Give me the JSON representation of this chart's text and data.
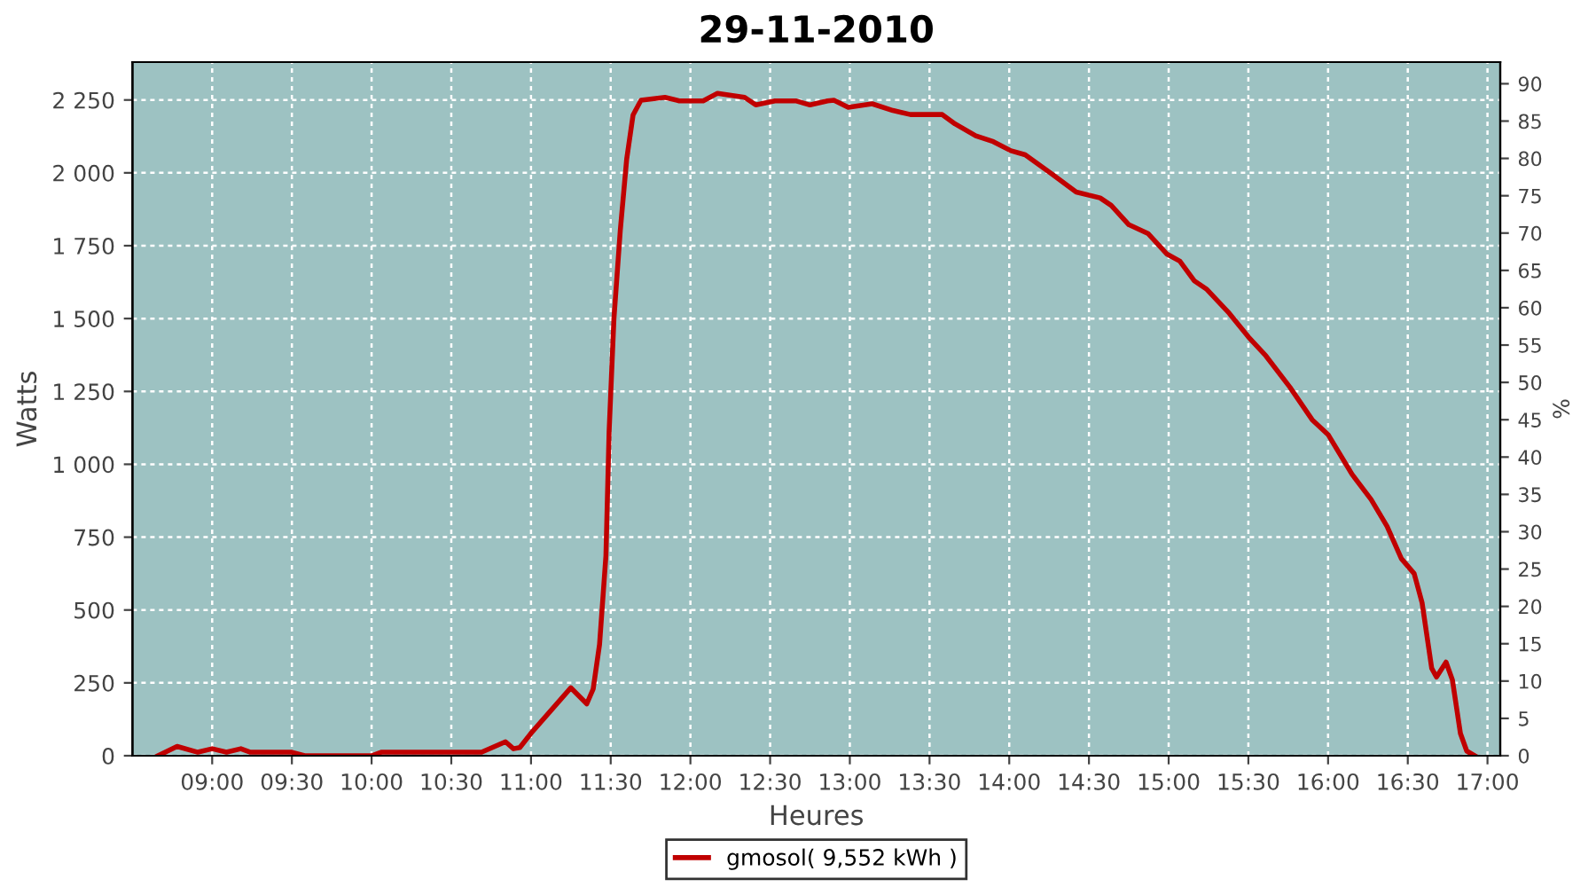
{
  "chart_data": {
    "type": "line",
    "title": "29-11-2010",
    "xlabel": "Heures",
    "ylabel": "Watts",
    "y2label": "%",
    "xlim": [
      8.5,
      17.08
    ],
    "ylim": [
      0,
      2380
    ],
    "y2lim": [
      0,
      92.9
    ],
    "xticks": [
      {
        "value": 9,
        "label": "09:00"
      },
      {
        "value": 9.5,
        "label": "09:30"
      },
      {
        "value": 10,
        "label": "10:00"
      },
      {
        "value": 10.5,
        "label": "10:30"
      },
      {
        "value": 11,
        "label": "11:00"
      },
      {
        "value": 11.5,
        "label": "11:30"
      },
      {
        "value": 12,
        "label": "12:00"
      },
      {
        "value": 12.5,
        "label": "12:30"
      },
      {
        "value": 13,
        "label": "13:00"
      },
      {
        "value": 13.5,
        "label": "13:30"
      },
      {
        "value": 14,
        "label": "14:00"
      },
      {
        "value": 14.5,
        "label": "14:30"
      },
      {
        "value": 15,
        "label": "15:00"
      },
      {
        "value": 15.5,
        "label": "15:30"
      },
      {
        "value": 16,
        "label": "16:00"
      },
      {
        "value": 16.5,
        "label": "16:30"
      },
      {
        "value": 17,
        "label": "17:00"
      }
    ],
    "yticks": [
      0,
      250,
      500,
      750,
      {
        "value": 1000,
        "label": "1 000"
      },
      {
        "value": 1250,
        "label": "1 250"
      },
      {
        "value": 1500,
        "label": "1 500"
      },
      {
        "value": 1750,
        "label": "1 750"
      },
      {
        "value": 2000,
        "label": "2 000"
      },
      {
        "value": 2250,
        "label": "2 250"
      }
    ],
    "y2ticks": [
      0,
      5,
      10,
      15,
      20,
      25,
      30,
      35,
      40,
      45,
      50,
      55,
      60,
      65,
      70,
      75,
      80,
      85,
      90
    ],
    "grid": true,
    "legend": "bottom",
    "marker": "none",
    "line_style": "solid",
    "series": [
      {
        "name": "gmosol( 9,552 kWh )",
        "color": "#c00000",
        "x": [
          8.66,
          8.78,
          8.91,
          9.0,
          9.09,
          9.18,
          9.24,
          9.5,
          9.58,
          10.0,
          10.06,
          10.69,
          10.84,
          10.89,
          10.93,
          11.0,
          11.25,
          11.35,
          11.39,
          11.43,
          11.47,
          11.49,
          11.52,
          11.56,
          11.6,
          11.64,
          11.69,
          11.84,
          11.93,
          12.08,
          12.17,
          12.34,
          12.41,
          12.53,
          12.66,
          12.75,
          12.86,
          12.9,
          12.99,
          13.14,
          13.27,
          13.38,
          13.58,
          13.66,
          13.79,
          13.9,
          14.01,
          14.1,
          14.27,
          14.42,
          14.57,
          14.64,
          14.75,
          14.87,
          14.99,
          15.07,
          15.16,
          15.24,
          15.38,
          15.5,
          15.61,
          15.76,
          15.9,
          16.0,
          16.15,
          16.27,
          16.37,
          16.46,
          16.54,
          16.59,
          16.65,
          16.68,
          16.74,
          16.78,
          16.83,
          16.87,
          16.92
        ],
        "values": [
          0,
          32,
          12,
          24,
          12,
          24,
          12,
          12,
          0,
          0,
          12,
          12,
          48,
          24,
          28,
          77,
          233,
          178,
          229,
          382,
          686,
          1112,
          1498,
          1802,
          2046,
          2198,
          2249,
          2259,
          2247,
          2247,
          2273,
          2259,
          2233,
          2247,
          2247,
          2233,
          2247,
          2249,
          2225,
          2237,
          2214,
          2200,
          2200,
          2168,
          2127,
          2107,
          2076,
          2062,
          1995,
          1934,
          1914,
          1888,
          1822,
          1792,
          1721,
          1697,
          1630,
          1600,
          1518,
          1437,
          1372,
          1265,
          1153,
          1102,
          966,
          879,
          787,
          676,
          625,
          524,
          300,
          270,
          321,
          260,
          77,
          16,
          0
        ]
      }
    ]
  }
}
